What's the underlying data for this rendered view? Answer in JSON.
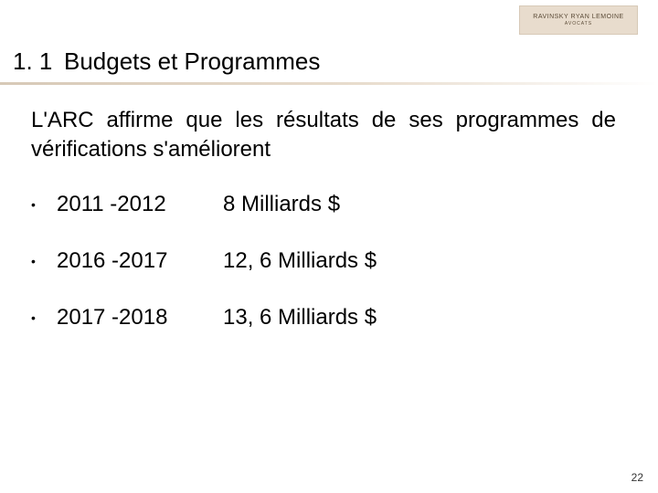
{
  "logo": {
    "line1": "RAVINSKY RYAN LEMOINE",
    "line2": "AVOCATS"
  },
  "heading": {
    "number": "1. 1",
    "title": "Budgets et Programmes"
  },
  "paragraph": "L'ARC affirme que les résultats de ses programmes de vérifications s'améliorent",
  "rows": [
    {
      "year": "2011 -2012",
      "value": "8 Milliards $"
    },
    {
      "year": "2016 -2017",
      "value": "12, 6 Milliards $"
    },
    {
      "year": "2017 -2018",
      "value": "13, 6 Milliards $"
    }
  ],
  "page_number": "22",
  "colors": {
    "logo_bg": "#e8dccd",
    "logo_border": "#d7c9b7",
    "bar_start": "#d7c9b7",
    "bar_mid": "#e8dccd",
    "text": "#000000",
    "background": "#ffffff"
  },
  "typography": {
    "heading_size_pt": 26,
    "body_size_pt": 24,
    "pagenum_size_pt": 12
  }
}
